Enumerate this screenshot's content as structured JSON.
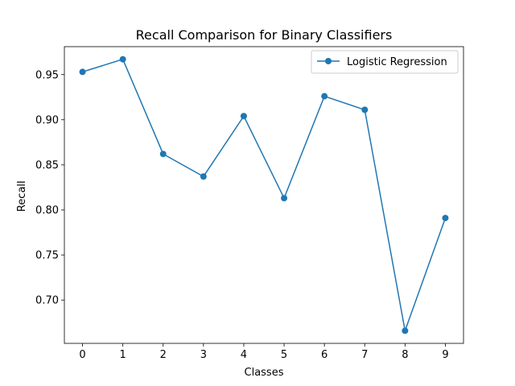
{
  "chart_data": {
    "type": "line",
    "title": "Recall Comparison for Binary Classifiers",
    "xlabel": "Classes",
    "ylabel": "Recall",
    "x": [
      0,
      1,
      2,
      3,
      4,
      5,
      6,
      7,
      8,
      9
    ],
    "xticks": [
      "0",
      "1",
      "2",
      "3",
      "4",
      "5",
      "6",
      "7",
      "8",
      "9"
    ],
    "yticks": [
      "0.70",
      "0.75",
      "0.80",
      "0.85",
      "0.90",
      "0.95"
    ],
    "xlim": [
      -0.45,
      9.45
    ],
    "ylim": [
      0.652,
      0.981
    ],
    "grid": false,
    "legend_position": "top-right",
    "series": [
      {
        "name": "Logistic Regression",
        "color": "#1f77b4",
        "marker": "circle",
        "values": [
          0.953,
          0.967,
          0.862,
          0.837,
          0.904,
          0.813,
          0.926,
          0.911,
          0.666,
          0.791
        ]
      }
    ]
  }
}
